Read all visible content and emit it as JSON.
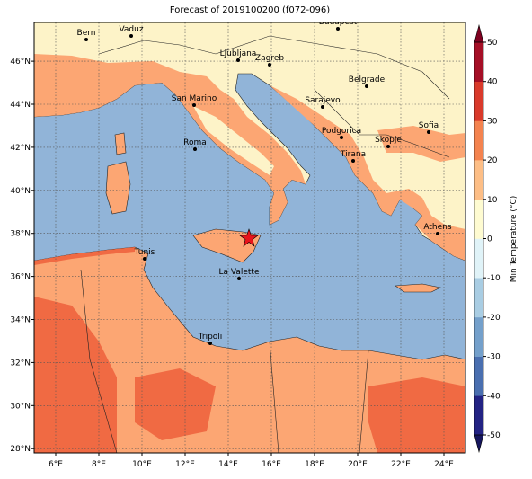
{
  "title": "Forecast of 2019100200 (f072-096)",
  "map": {
    "xlim": [
      5,
      25
    ],
    "ylim": [
      27.8,
      47.8
    ],
    "xticks": [
      {
        "value": 6,
        "label": "6°E"
      },
      {
        "value": 8,
        "label": "8°E"
      },
      {
        "value": 10,
        "label": "10°E"
      },
      {
        "value": 12,
        "label": "12°E"
      },
      {
        "value": 14,
        "label": "14°E"
      },
      {
        "value": 16,
        "label": "16°E"
      },
      {
        "value": 18,
        "label": "18°E"
      },
      {
        "value": 20,
        "label": "20°E"
      },
      {
        "value": 22,
        "label": "22°E"
      },
      {
        "value": 24,
        "label": "24°E"
      }
    ],
    "yticks": [
      {
        "value": 28,
        "label": "28°N"
      },
      {
        "value": 30,
        "label": "30°N"
      },
      {
        "value": 32,
        "label": "32°N"
      },
      {
        "value": 34,
        "label": "34°N"
      },
      {
        "value": 36,
        "label": "36°N"
      },
      {
        "value": 38,
        "label": "38°N"
      },
      {
        "value": 40,
        "label": "40°N"
      },
      {
        "value": 42,
        "label": "42°N"
      },
      {
        "value": 44,
        "label": "44°N"
      },
      {
        "value": 46,
        "label": "46°N"
      }
    ],
    "grid": true,
    "cities": [
      "Bern",
      "Vaduz",
      "Budapest",
      "Ljubljana",
      "Zagreb",
      "San Marino",
      "Belgrade",
      "Sarajevo",
      "Sofia",
      "Podgorica",
      "Skopje",
      "Roma",
      "Tirana",
      "Athens",
      "Tunis",
      "La Valette",
      "Tripoli"
    ]
  },
  "colorbar": {
    "label": "Min Temperature (°C)",
    "lim": [
      -50,
      50
    ],
    "ticks": [
      -50,
      -40,
      -30,
      -20,
      -10,
      0,
      10,
      20,
      30,
      40,
      50
    ],
    "colors": [
      "#232384",
      "#4a6fb0",
      "#74a0cb",
      "#a9cde3",
      "#e0f3f8",
      "#fefbd1",
      "#fdbe86",
      "#f4834f",
      "#d93a2b",
      "#a50f26"
    ],
    "under_color": "#16165e",
    "over_color": "#7f0020"
  }
}
